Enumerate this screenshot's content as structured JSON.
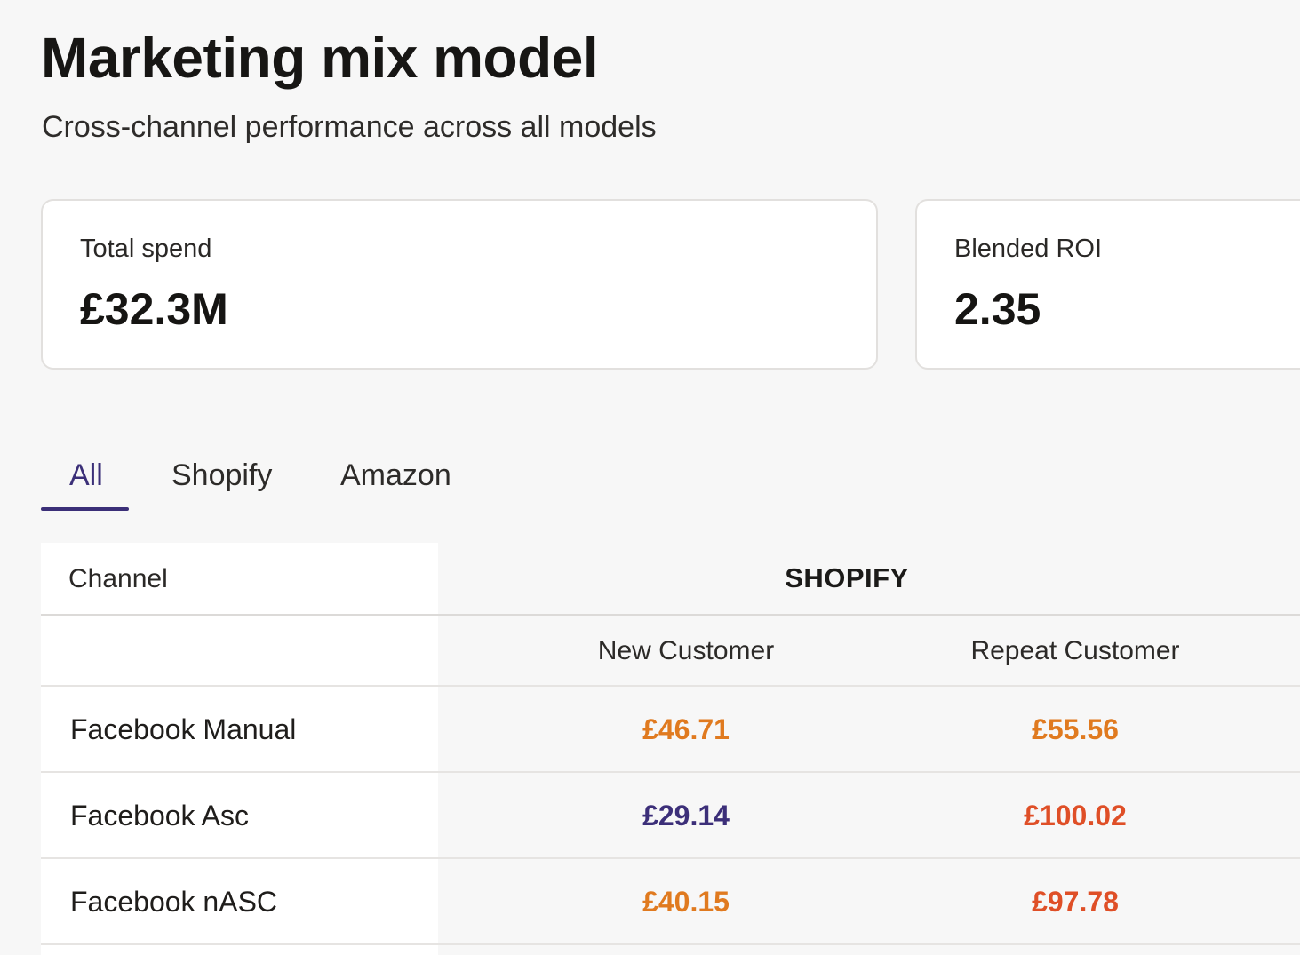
{
  "page": {
    "title": "Marketing mix model",
    "subtitle": "Cross-channel performance across all models"
  },
  "kpis": [
    {
      "label": "Total spend",
      "value": "£32.3M"
    },
    {
      "label": "Blended ROI",
      "value": "2.35"
    }
  ],
  "tabs": [
    {
      "label": "All",
      "active": true
    },
    {
      "label": "Shopify",
      "active": false
    },
    {
      "label": "Amazon",
      "active": false
    }
  ],
  "table": {
    "channel_header": "Channel",
    "group_header": "SHOPIFY",
    "sub_headers": [
      "New Customer",
      "Repeat Customer"
    ],
    "rows": [
      {
        "channel": "Facebook Manual",
        "new_customer": "£46.71",
        "repeat_customer": "£55.56",
        "new_color": "#e07a1f",
        "repeat_color": "#e07a1f"
      },
      {
        "channel": "Facebook Asc",
        "new_customer": "£29.14",
        "repeat_customer": "£100.02",
        "new_color": "#3c2f79",
        "repeat_color": "#df4f27"
      },
      {
        "channel": "Facebook nASC",
        "new_customer": "£40.15",
        "repeat_customer": "£97.78",
        "new_color": "#e07a1f",
        "repeat_color": "#df4f27"
      }
    ]
  },
  "colors": {
    "accent": "#3b2f78",
    "orange": "#e07a1f",
    "red": "#df4f27",
    "purple": "#3c2f79"
  }
}
